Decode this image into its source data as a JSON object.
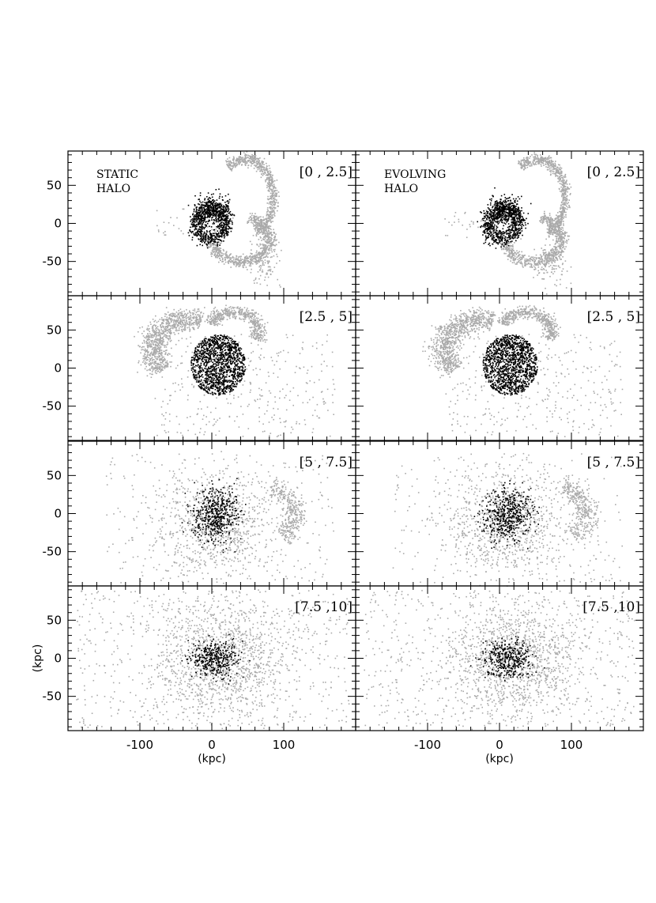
{
  "chart_data": {
    "type": "scatter",
    "title": "",
    "panel_grid": {
      "rows": 4,
      "cols": 2
    },
    "column_labels": [
      [
        "STATIC",
        "HALO"
      ],
      [
        "EVOLVING",
        "HALO"
      ]
    ],
    "row_labels": [
      "[0 , 2.5]",
      "[2.5 , 5]",
      "[5 , 7.5]",
      "[7.5 ,10]"
    ],
    "xlabel": "(kpc)",
    "ylabel": "(kpc)",
    "xlim": [
      -200,
      200
    ],
    "ylim": [
      -95,
      95
    ],
    "xticks": [
      -100,
      0,
      100
    ],
    "xtick_labels": [
      "-100",
      "0",
      "100"
    ],
    "yticks": [
      -50,
      0,
      50
    ],
    "ytick_labels": [
      "-50",
      "0",
      "50"
    ],
    "series": [
      {
        "color": "#aaaaaa"
      },
      {
        "color": "#000000"
      }
    ]
  }
}
